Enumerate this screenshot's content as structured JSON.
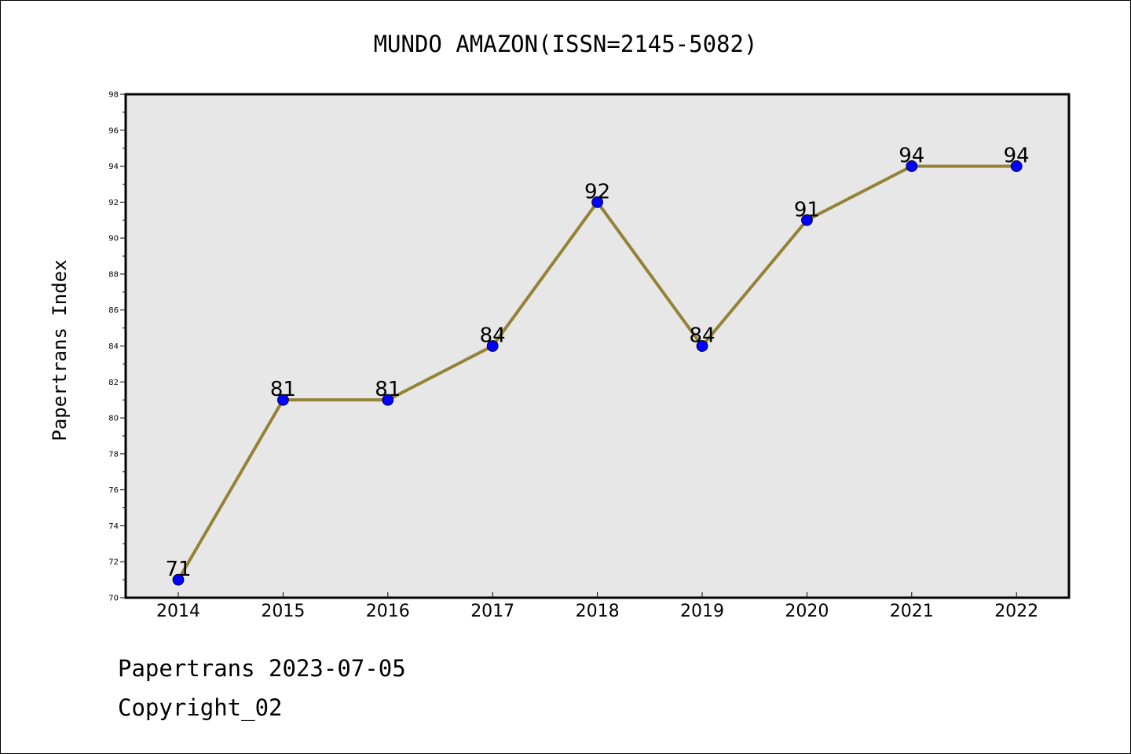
{
  "chart_data": {
    "type": "line",
    "title": "MUNDO AMAZON(ISSN=2145-5082)",
    "xlabel": "",
    "ylabel": "Papertrans Index",
    "x": [
      2014,
      2015,
      2016,
      2017,
      2018,
      2019,
      2020,
      2021,
      2022
    ],
    "series": [
      {
        "values": [
          71,
          81,
          81,
          84,
          92,
          84,
          91,
          94,
          94
        ]
      }
    ],
    "ylim": [
      70,
      98
    ],
    "ytick_step": 2,
    "grid": false,
    "colors": {
      "line": "#948236",
      "marker": "#0000ff",
      "plot_background": "#e7e7e7"
    }
  },
  "footer": {
    "line1": "Papertrans 2023-07-05",
    "line2": "Copyright_02"
  }
}
